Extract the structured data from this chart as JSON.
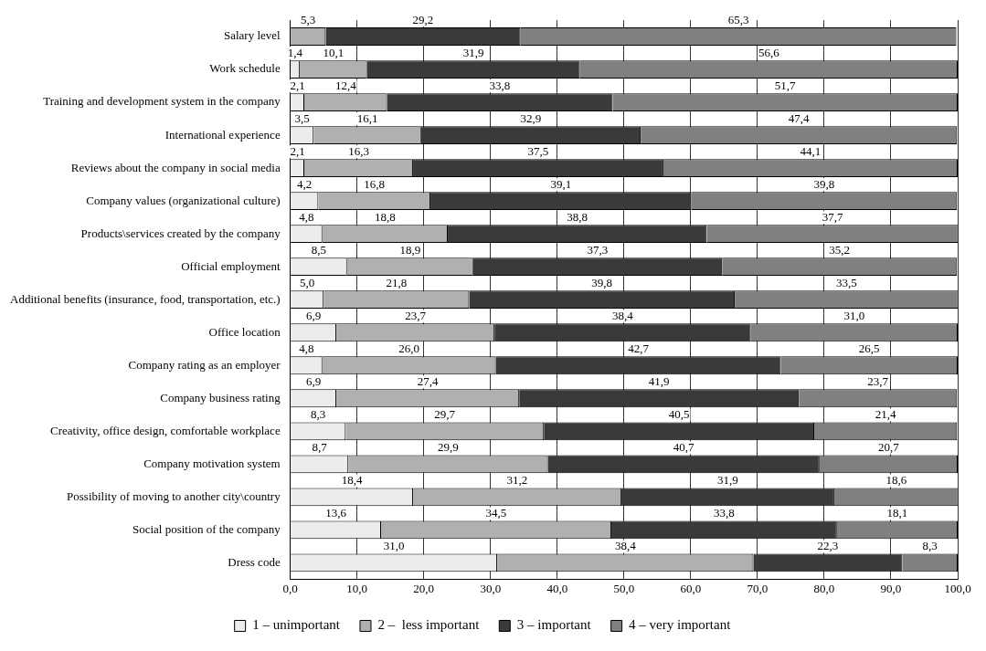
{
  "chart_data": {
    "type": "bar",
    "orientation": "horizontal",
    "stacked": true,
    "categories": [
      "Salary level",
      "Work schedule",
      "Training and development system in the company",
      "International experience",
      "Reviews about the company in social media",
      "Company values (organizational culture)",
      "Products\\services created by the company",
      "Official employment",
      "Additional benefits (insurance, food, transportation, etc.)",
      "Office location",
      "Company rating as an employer",
      "Company business rating",
      "Creativity, office design, comfortable workplace",
      "Company motivation system",
      "Possibility of moving to another city\\country",
      "Social position of the company",
      "Dress code"
    ],
    "series": [
      {
        "name": "1 – unimportant",
        "color": "#ececec",
        "values": [
          null,
          1.4,
          2.1,
          3.5,
          2.1,
          4.2,
          4.8,
          8.5,
          5.0,
          6.9,
          4.8,
          6.9,
          8.3,
          8.7,
          18.4,
          13.6,
          31.0
        ],
        "value_labels": [
          null,
          "1,4",
          "2,1",
          "3,5",
          "2,1",
          "4,2",
          "4,8",
          "8,5",
          "5,0",
          "6,9",
          "4,8",
          "6,9",
          "8,3",
          "8,7",
          "18,4",
          "13,6",
          "31,0"
        ]
      },
      {
        "name": "2 –  less important",
        "color": "#b0b0b0",
        "values": [
          5.3,
          10.1,
          12.4,
          16.1,
          16.3,
          16.8,
          18.8,
          18.9,
          21.8,
          23.7,
          26.0,
          27.4,
          29.7,
          29.9,
          31.2,
          34.5,
          38.4
        ],
        "value_labels": [
          "5,3",
          "10,1",
          "12,4",
          "16,1",
          "16,3",
          "16,8",
          "18,8",
          "18,9",
          "21,8",
          "23,7",
          "26,0",
          "27,4",
          "29,7",
          "29,9",
          "31,2",
          "34,5",
          "38,4"
        ]
      },
      {
        "name": "3 – important",
        "color": "#3a3a3a",
        "values": [
          29.2,
          31.9,
          33.8,
          32.9,
          37.5,
          39.1,
          38.8,
          37.3,
          39.8,
          38.4,
          42.7,
          41.9,
          40.5,
          40.7,
          31.9,
          33.8,
          22.3
        ],
        "value_labels": [
          "29,2",
          "31,9",
          "33,8",
          "32,9",
          "37,5",
          "39,1",
          "38,8",
          "37,3",
          "39,8",
          "38,4",
          "42,7",
          "41,9",
          "40,5",
          "40,7",
          "31,9",
          "33,8",
          "22,3"
        ]
      },
      {
        "name": "4 – very important",
        "color": "#808080",
        "values": [
          65.3,
          56.6,
          51.7,
          47.4,
          44.1,
          39.8,
          37.7,
          35.2,
          33.5,
          31.0,
          26.5,
          23.7,
          21.4,
          20.7,
          18.6,
          18.1,
          8.3
        ],
        "value_labels": [
          "65,3",
          "56,6",
          "51,7",
          "47,4",
          "44,1",
          "39,8",
          "37,7",
          "35,2",
          "33,5",
          "31,0",
          "26,5",
          "23,7",
          "21,4",
          "20,7",
          "18,6",
          "18,1",
          "8,3"
        ]
      }
    ],
    "xlim": [
      0,
      100
    ],
    "xticks": [
      {
        "value": 0,
        "label": "0,0"
      },
      {
        "value": 10,
        "label": "10,0"
      },
      {
        "value": 20,
        "label": "20,0"
      },
      {
        "value": 30,
        "label": "30,0"
      },
      {
        "value": 40,
        "label": "40,0"
      },
      {
        "value": 50,
        "label": "50,0"
      },
      {
        "value": 60,
        "label": "60,0"
      },
      {
        "value": 70,
        "label": "70,0"
      },
      {
        "value": 80,
        "label": "80,0"
      },
      {
        "value": 90,
        "label": "90,0"
      },
      {
        "value": 100,
        "label": "100,0"
      }
    ],
    "grid": "x",
    "legend": "bottom"
  }
}
